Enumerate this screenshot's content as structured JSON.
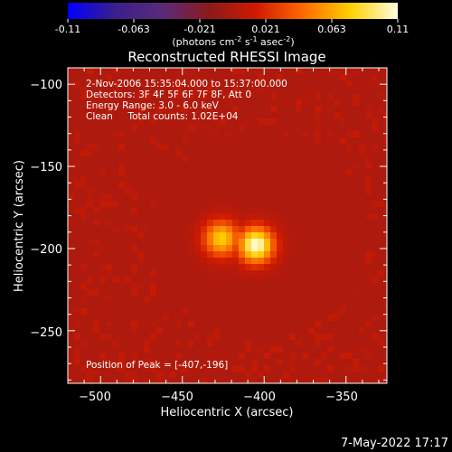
{
  "colorbar": {
    "ticks": [
      "-0.11",
      "-0.063",
      "-0.021",
      "0.021",
      "0.063",
      "0.11"
    ],
    "unit_label_parts": {
      "a": "(photons cm",
      "sup1": "-2",
      "b": " s",
      "sup2": "-1",
      "c": " asec",
      "sup3": "-2",
      "d": ")"
    },
    "colors": [
      "#0000ff",
      "#3a1f8c",
      "#5a2a7a",
      "#8c1a1a",
      "#d01a00",
      "#ff6a00",
      "#ffd000",
      "#ffffe0"
    ]
  },
  "chart_data": {
    "type": "heatmap",
    "title": "Reconstructed RHESSI Image",
    "xlabel": "Heliocentric X (arcsec)",
    "ylabel": "Heliocentric Y (arcsec)",
    "xlim": [
      -520,
      -325
    ],
    "ylim": [
      -282,
      -90
    ],
    "x_ticks": [
      -500,
      -450,
      -400,
      -350
    ],
    "y_ticks": [
      -100,
      -150,
      -200,
      -250
    ],
    "x_tick_labels": [
      "−500",
      "−450",
      "−400",
      "−350"
    ],
    "y_tick_labels": [
      "−100",
      "−150",
      "−200",
      "−250"
    ],
    "annotations": [
      "2-Nov-2006 15:35:04.000 to 15:37:00.000",
      "Detectors: 3F 4F 5F 6F 7F 8F, Att 0",
      "Energy Range: 3.0 - 6.0 keV",
      "Clean     Total counts: 1.02E+04"
    ],
    "peak_label": "Position of Peak = [-407,-196]",
    "peak": {
      "x": -407,
      "y": -196
    },
    "sources": [
      {
        "x": -407,
        "y": -196,
        "value": 0.11
      },
      {
        "x": -428,
        "y": -192,
        "value": 0.08
      }
    ],
    "colorbar_range": [
      -0.11,
      0.11
    ]
  },
  "timestamp": "7-May-2022 17:17"
}
